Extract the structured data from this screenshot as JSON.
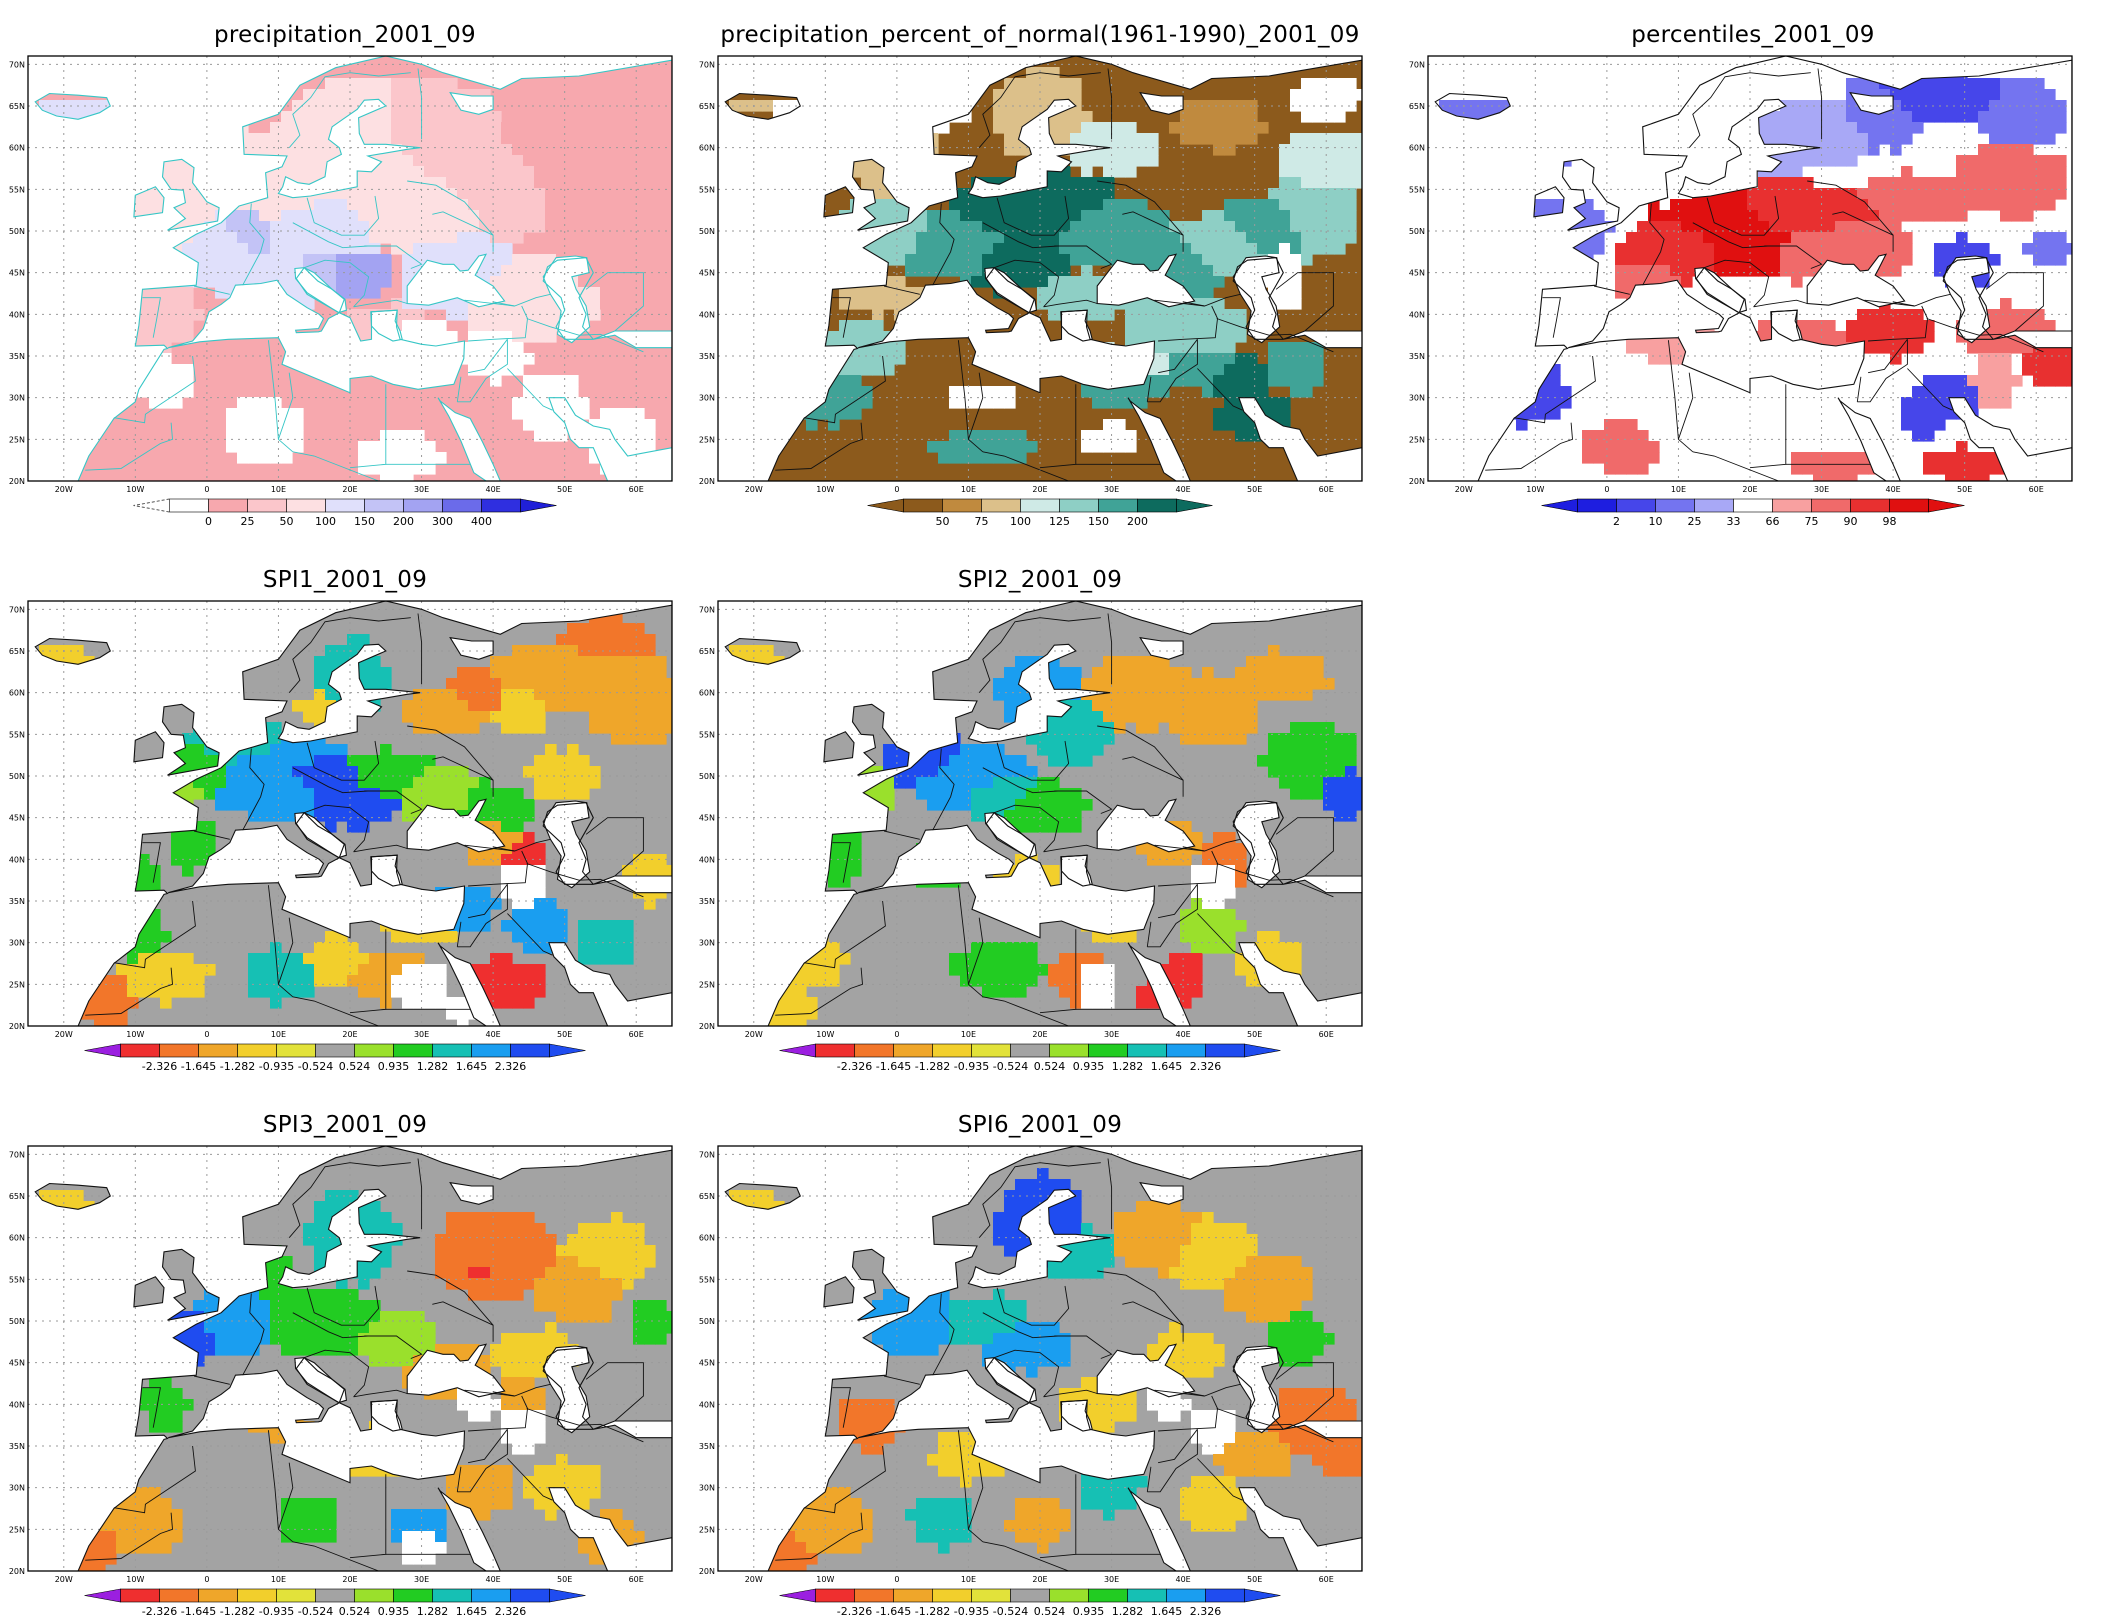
{
  "figure": {
    "panels": [
      {
        "id": "precip",
        "title": "precipitation_2001_09",
        "style": "precip",
        "lat_labels": [
          "70N",
          "65N",
          "60N",
          "55N",
          "50N",
          "45N",
          "40N",
          "35N",
          "30N",
          "25N",
          "20N"
        ],
        "lon_labels": [
          "20W",
          "10W",
          "0",
          "10E",
          "20E",
          "30E",
          "40E",
          "50E",
          "60E"
        ],
        "colorbar": {
          "ticks": [
            "0",
            "25",
            "50",
            "100",
            "150",
            "200",
            "300",
            "400"
          ],
          "colors": [
            "#ffffff",
            "#f7a8ae",
            "#fbc6cb",
            "#fde0e2",
            "#e0e0fb",
            "#c3c3f6",
            "#a3a3f2",
            "#6b6bea",
            "#2f2fe0"
          ],
          "left_arrow": "dashed",
          "right_arrow": "#2020d8"
        }
      },
      {
        "id": "pct",
        "title": "precipitation_percent_of_normal(1961-1990)_2001_09",
        "style": "pct",
        "lat_labels": [
          "70N",
          "65N",
          "60N",
          "55N",
          "50N",
          "45N",
          "40N",
          "35N",
          "30N",
          "25N",
          "20N"
        ],
        "lon_labels": [
          "20W",
          "10W",
          "0",
          "10E",
          "20E",
          "30E",
          "40E",
          "50E",
          "60E"
        ],
        "colorbar": {
          "ticks": [
            "50",
            "75",
            "100",
            "125",
            "150",
            "200"
          ],
          "colors": [
            "#8c5a1c",
            "#c08a3e",
            "#dcc08a",
            "#cfeae6",
            "#8ecfc5",
            "#40a397",
            "#0d6b5e"
          ],
          "left_arrow": "#8c5a1c",
          "right_arrow": "#0d6b5e"
        }
      },
      {
        "id": "perc",
        "title": "percentiles_2001_09",
        "style": "perc",
        "lat_labels": [
          "70N",
          "65N",
          "60N",
          "55N",
          "50N",
          "45N",
          "40N",
          "35N",
          "30N",
          "25N",
          "20N"
        ],
        "lon_labels": [
          "20W",
          "10W",
          "0",
          "10E",
          "20E",
          "30E",
          "40E",
          "50E",
          "60E"
        ],
        "colorbar": {
          "ticks": [
            "2",
            "10",
            "25",
            "33",
            "66",
            "75",
            "90",
            "98"
          ],
          "colors": [
            "#1e1ee0",
            "#4646ea",
            "#7474f0",
            "#a8a8f6",
            "#ffffff",
            "#f8a0a0",
            "#f06a6a",
            "#e83030",
            "#e01010"
          ],
          "left_arrow": "#1e1ee0",
          "right_arrow": "#e01010"
        }
      },
      {
        "id": "spi1",
        "title": "SPI1_2001_09",
        "style": "spi1",
        "lat_labels": [
          "70N",
          "65N",
          "60N",
          "55N",
          "50N",
          "45N",
          "40N",
          "35N",
          "30N",
          "25N",
          "20N"
        ],
        "lon_labels": [
          "20W",
          "10W",
          "0",
          "10E",
          "20E",
          "30E",
          "40E",
          "50E",
          "60E"
        ],
        "colorbar": {
          "ticks": [
            "-2.326",
            "-1.645",
            "-1.282",
            "-0.935",
            "-0.524",
            "0.524",
            "0.935",
            "1.282",
            "1.645",
            "2.326"
          ],
          "colors": [
            "#ef2f2f",
            "#f2762a",
            "#efa62a",
            "#f2cf2c",
            "#e2e23a",
            "#a3a3a3",
            "#9ae02c",
            "#22cc22",
            "#16c0b4",
            "#1a9ef0",
            "#1f4cf0"
          ],
          "left_arrow": "#9b1fe0",
          "right_arrow": "#1f4cf0"
        }
      },
      {
        "id": "spi2",
        "title": "SPI2_2001_09",
        "style": "spi2",
        "lat_labels": [
          "70N",
          "65N",
          "60N",
          "55N",
          "50N",
          "45N",
          "40N",
          "35N",
          "30N",
          "25N",
          "20N"
        ],
        "lon_labels": [
          "20W",
          "10W",
          "0",
          "10E",
          "20E",
          "30E",
          "40E",
          "50E",
          "60E"
        ],
        "colorbar": {
          "ticks": [
            "-2.326",
            "-1.645",
            "-1.282",
            "-0.935",
            "-0.524",
            "0.524",
            "0.935",
            "1.282",
            "1.645",
            "2.326"
          ],
          "colors": [
            "#ef2f2f",
            "#f2762a",
            "#efa62a",
            "#f2cf2c",
            "#e2e23a",
            "#a3a3a3",
            "#9ae02c",
            "#22cc22",
            "#16c0b4",
            "#1a9ef0",
            "#1f4cf0"
          ],
          "left_arrow": "#9b1fe0",
          "right_arrow": "#1f4cf0"
        }
      },
      {
        "id": "spi3",
        "title": "SPI3_2001_09",
        "style": "spi3",
        "lat_labels": [
          "70N",
          "65N",
          "60N",
          "55N",
          "50N",
          "45N",
          "40N",
          "35N",
          "30N",
          "25N",
          "20N"
        ],
        "lon_labels": [
          "20W",
          "10W",
          "0",
          "10E",
          "20E",
          "30E",
          "40E",
          "50E",
          "60E"
        ],
        "colorbar": {
          "ticks": [
            "-2.326",
            "-1.645",
            "-1.282",
            "-0.935",
            "-0.524",
            "0.524",
            "0.935",
            "1.282",
            "1.645",
            "2.326"
          ],
          "colors": [
            "#ef2f2f",
            "#f2762a",
            "#efa62a",
            "#f2cf2c",
            "#e2e23a",
            "#a3a3a3",
            "#9ae02c",
            "#22cc22",
            "#16c0b4",
            "#1a9ef0",
            "#1f4cf0"
          ],
          "left_arrow": "#9b1fe0",
          "right_arrow": "#1f4cf0"
        }
      },
      {
        "id": "spi6",
        "title": "SPI6_2001_09",
        "style": "spi6",
        "lat_labels": [
          "70N",
          "65N",
          "60N",
          "55N",
          "50N",
          "45N",
          "40N",
          "35N",
          "30N",
          "25N",
          "20N"
        ],
        "lon_labels": [
          "20W",
          "10W",
          "0",
          "10E",
          "20E",
          "30E",
          "40E",
          "50E",
          "60E"
        ],
        "colorbar": {
          "ticks": [
            "-2.326",
            "-1.645",
            "-1.282",
            "-0.935",
            "-0.524",
            "0.524",
            "0.935",
            "1.282",
            "1.645",
            "2.326"
          ],
          "colors": [
            "#ef2f2f",
            "#f2762a",
            "#efa62a",
            "#f2cf2c",
            "#e2e23a",
            "#a3a3a3",
            "#9ae02c",
            "#22cc22",
            "#16c0b4",
            "#1a9ef0",
            "#1f4cf0"
          ],
          "left_arrow": "#9b1fe0",
          "right_arrow": "#1f4cf0"
        }
      }
    ]
  }
}
